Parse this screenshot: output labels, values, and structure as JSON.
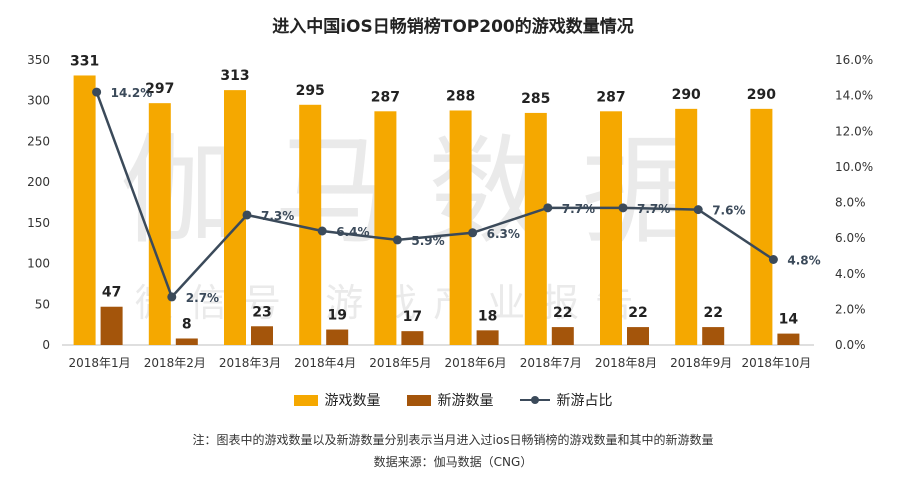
{
  "title": "进入中国iOS日畅销榜TOP200的游戏数量情况",
  "watermark": {
    "main": "伽马数据",
    "sub": "微信号  游戏产业报告"
  },
  "legend": {
    "games": "游戏数量",
    "new_games": "新游数量",
    "ratio": "新游占比"
  },
  "notes": {
    "line1": "注：图表中的游戏数量以及新游数量分别表示当月进入过ios日畅销榜的游戏数量和其中的新游数量",
    "line2": "数据来源：伽马数据（CNG）"
  },
  "colors": {
    "games": "#F5A800",
    "new_games": "#A4550B",
    "ratio": "#3B4A5A"
  },
  "chart_data": {
    "type": "bar",
    "title": "进入中国iOS日畅销榜TOP200的游戏数量情况",
    "categories": [
      "2018年1月",
      "2018年2月",
      "2018年3月",
      "2018年4月",
      "2018年5月",
      "2018年6月",
      "2018年7月",
      "2018年8月",
      "2018年9月",
      "2018年10月"
    ],
    "series": [
      {
        "name": "游戏数量",
        "type": "bar",
        "axis": "left",
        "values": [
          331,
          297,
          313,
          295,
          287,
          288,
          285,
          287,
          290,
          290
        ],
        "labels": [
          "331",
          "297",
          "313",
          "295",
          "287",
          "288",
          "285",
          "287",
          "290",
          "290"
        ]
      },
      {
        "name": "新游数量",
        "type": "bar",
        "axis": "left",
        "values": [
          47,
          8,
          23,
          19,
          17,
          18,
          22,
          22,
          22,
          14
        ],
        "labels": [
          "47",
          "8",
          "23",
          "19",
          "17",
          "18",
          "22",
          "22",
          "22",
          "14"
        ]
      },
      {
        "name": "新游占比",
        "type": "line",
        "axis": "right",
        "values": [
          14.2,
          2.7,
          7.3,
          6.4,
          5.9,
          6.3,
          7.7,
          7.7,
          7.6,
          4.8
        ],
        "labels": [
          "14.2%",
          "2.7%",
          "7.3%",
          "6.4%",
          "5.9%",
          "6.3%",
          "7.7%",
          "7.7%",
          "7.6%",
          "4.8%"
        ]
      }
    ],
    "y_left": {
      "min": 0,
      "max": 350,
      "ticks": [
        "0",
        "50",
        "100",
        "150",
        "200",
        "250",
        "300",
        "350"
      ]
    },
    "y_right": {
      "min": 0,
      "max": 16,
      "ticks": [
        "0.0%",
        "2.0%",
        "4.0%",
        "6.0%",
        "8.0%",
        "10.0%",
        "12.0%",
        "14.0%",
        "16.0%"
      ]
    },
    "grid": false,
    "legend_position": "bottom"
  }
}
